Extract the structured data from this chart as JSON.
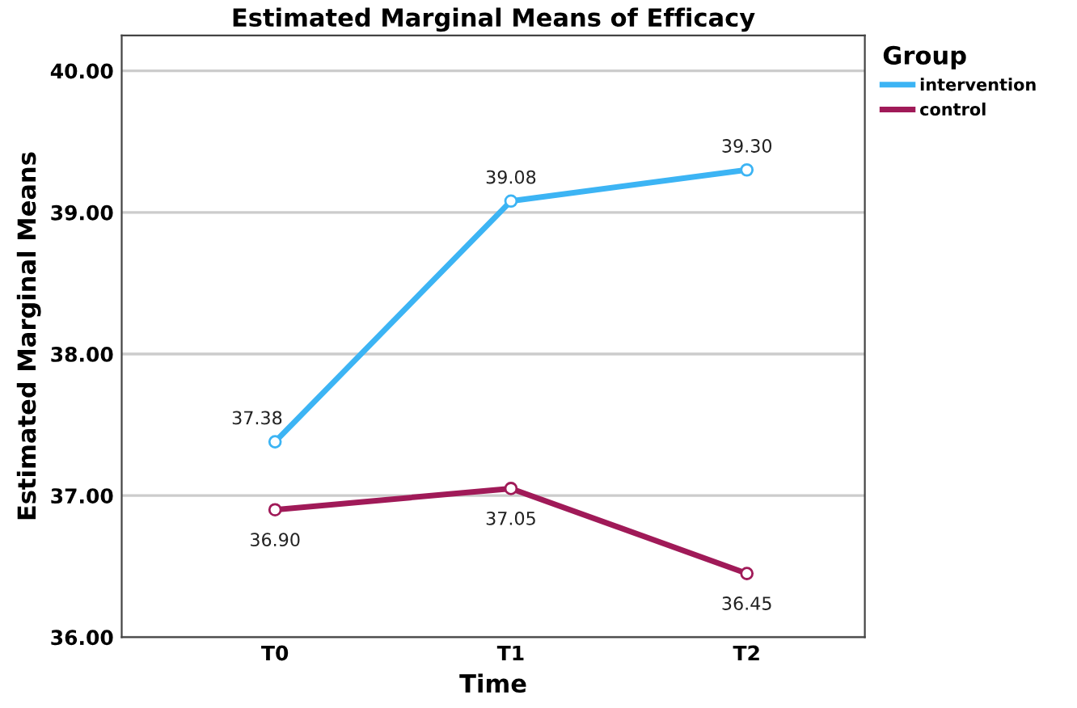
{
  "chart_data": {
    "type": "line",
    "title": "Estimated Marginal Means of Efficacy",
    "xlabel": "Time",
    "ylabel": "Estimated Marginal Means",
    "legend_title": "Group",
    "categories": [
      "T0",
      "T1",
      "T2"
    ],
    "series": [
      {
        "name": "intervention",
        "color": "#3cb4f4",
        "values": [
          37.38,
          39.08,
          39.3
        ],
        "value_labels": [
          "37.38",
          "39.08",
          "39.30"
        ]
      },
      {
        "name": "control",
        "color": "#a01a58",
        "values": [
          36.9,
          37.05,
          36.45
        ],
        "value_labels": [
          "36.90",
          "37.05",
          "36.45"
        ]
      }
    ],
    "ylim": [
      36,
      40.25
    ],
    "yticks": [
      {
        "value": 36,
        "label": "36.00"
      },
      {
        "value": 37,
        "label": "37.00"
      },
      {
        "value": 38,
        "label": "38.00"
      },
      {
        "value": 39,
        "label": "39.00"
      },
      {
        "value": 40,
        "label": "40.00"
      }
    ],
    "grid": "y",
    "legend": "top right",
    "marker": "circle",
    "line_style": "solid"
  }
}
